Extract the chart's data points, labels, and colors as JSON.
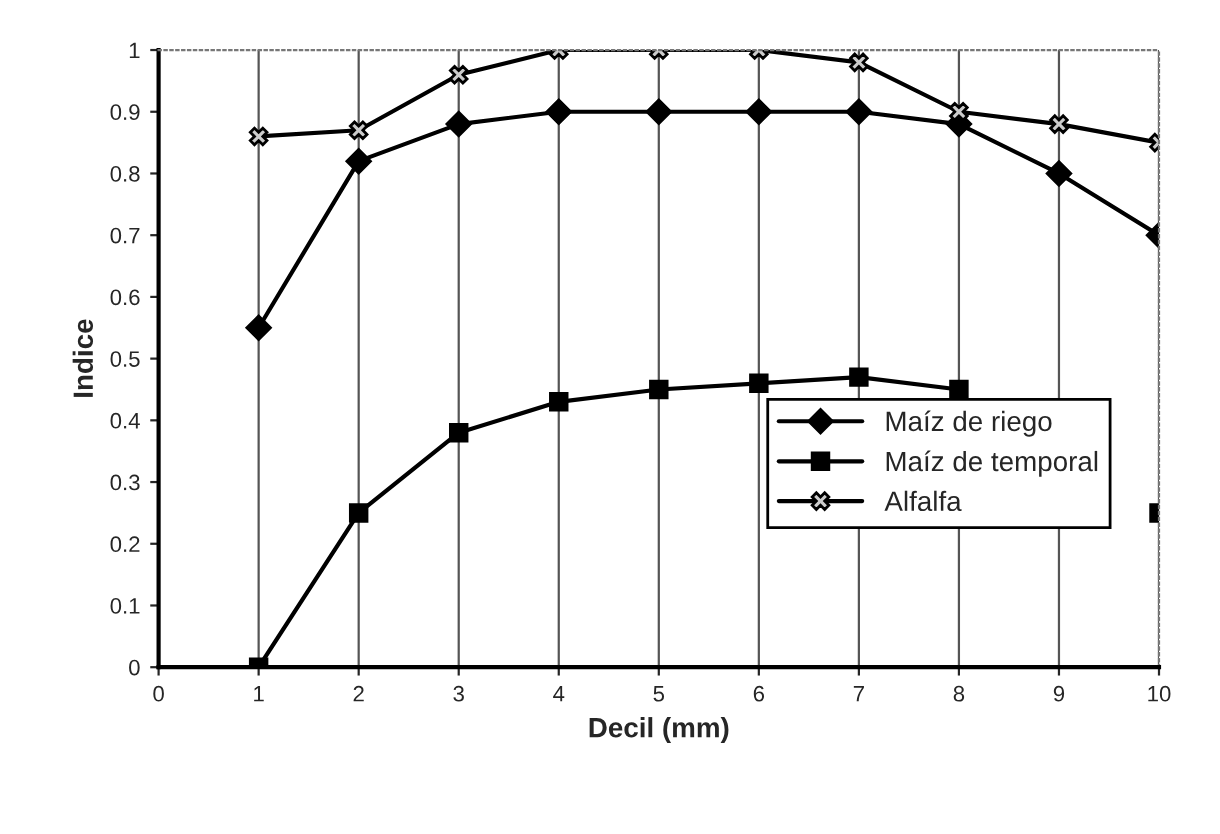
{
  "chart_data": {
    "type": "line",
    "xlabel": "Decil (mm)",
    "ylabel": "Indice",
    "x": [
      1,
      2,
      3,
      4,
      5,
      6,
      7,
      8,
      9,
      10
    ],
    "series": [
      {
        "name": "Maíz de riego",
        "color": "#000000",
        "marker": "diamond",
        "values": [
          0.55,
          0.82,
          0.88,
          0.9,
          0.9,
          0.9,
          0.9,
          0.88,
          0.8,
          0.7
        ]
      },
      {
        "name": "Maíz de temporal",
        "color": "#000000",
        "marker": "square",
        "values": [
          0,
          0.25,
          0.38,
          0.43,
          0.45,
          0.46,
          0.47,
          0.45,
          null,
          0.25
        ]
      },
      {
        "name": "Alfalfa",
        "color": "#000000",
        "marker": "cross",
        "values": [
          0.86,
          0.87,
          0.96,
          1,
          1,
          1,
          0.98,
          0.9,
          0.88,
          0.85
        ]
      }
    ],
    "xlim": [
      0,
      10
    ],
    "ylim": [
      0,
      1
    ],
    "xticks": [
      0,
      1,
      2,
      3,
      4,
      5,
      6,
      7,
      8,
      9,
      10
    ],
    "yticks": [
      0,
      0.1,
      0.2,
      0.3,
      0.4,
      0.5,
      0.6,
      0.7,
      0.8,
      0.9,
      1
    ],
    "grid": "x",
    "legend": "right",
    "line_style": "solid"
  }
}
